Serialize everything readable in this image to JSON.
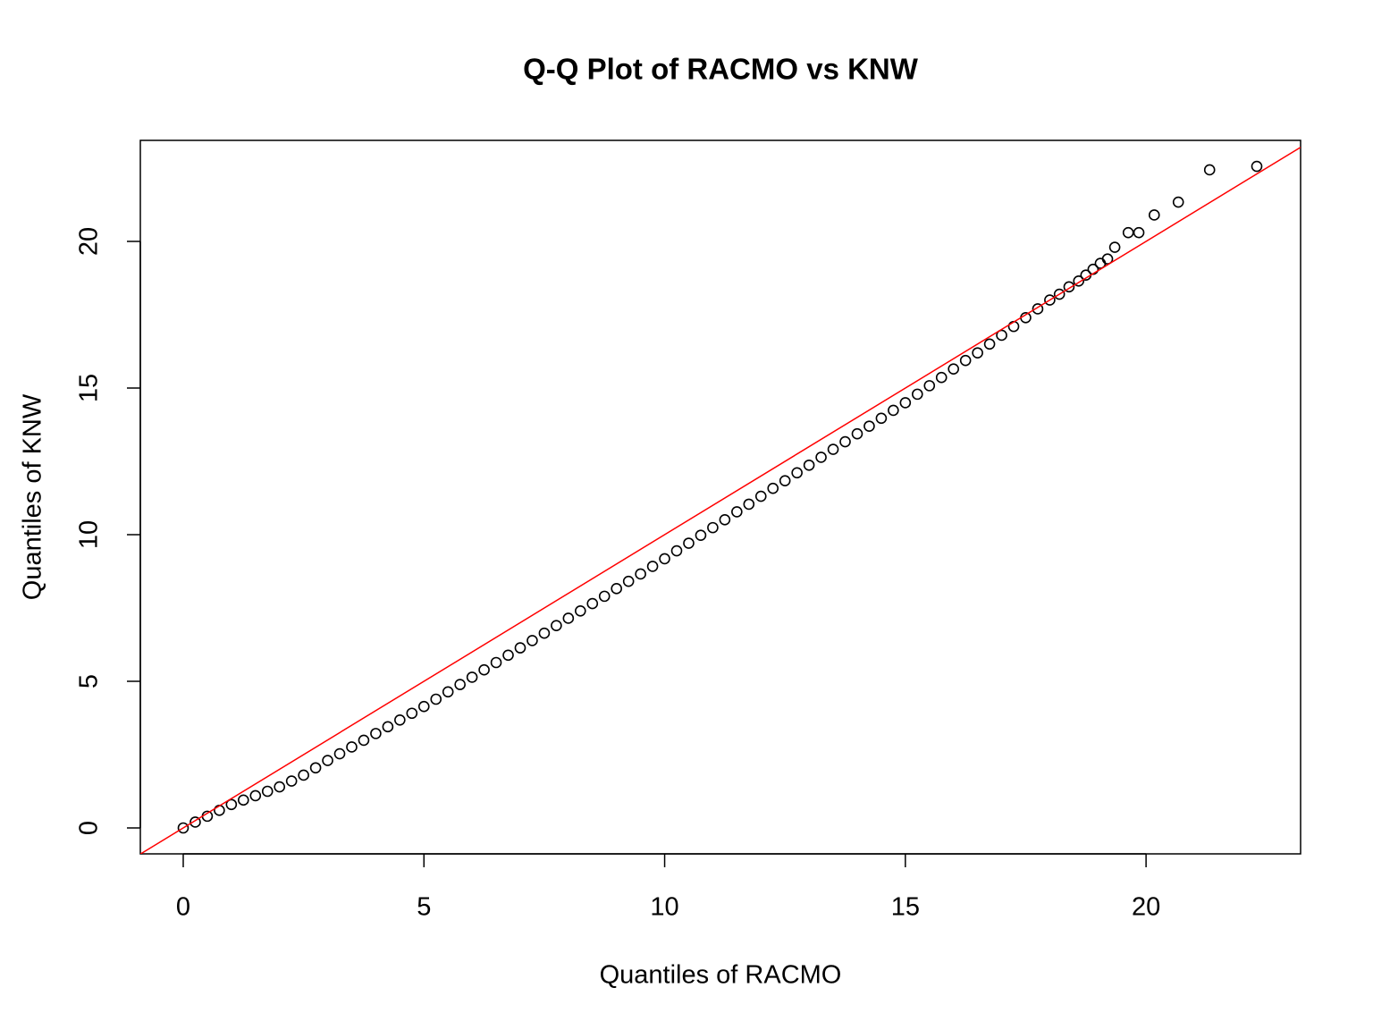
{
  "chart_data": {
    "type": "scatter",
    "title": "Q-Q Plot of RACMO vs KNW",
    "x_label": "Quantiles of RACMO",
    "y_label": "Quantiles of KNW",
    "xlim": [
      -0.891,
      23.21
    ],
    "ylim": [
      -0.884,
      23.445
    ],
    "xticks": [
      0,
      5,
      10,
      15,
      20
    ],
    "yticks": [
      0,
      5,
      10,
      15,
      20
    ],
    "grid": false,
    "color": "#000000",
    "reference_line": {
      "slope": 1,
      "intercept": 0,
      "color": "#ff0000"
    },
    "x": [
      0,
      0.25,
      0.5,
      0.75,
      1,
      1.25,
      1.5,
      1.75,
      2,
      2.25,
      2.5,
      2.75,
      3,
      3.25,
      3.5,
      3.75,
      4,
      4.25,
      4.5,
      4.75,
      5,
      5.25,
      5.5,
      5.75,
      6,
      6.25,
      6.5,
      6.75,
      7,
      7.25,
      7.5,
      7.75,
      8,
      8.25,
      8.5,
      8.75,
      9,
      9.25,
      9.5,
      9.75,
      10,
      10.25,
      10.5,
      10.75,
      11,
      11.25,
      11.5,
      11.75,
      12,
      12.25,
      12.5,
      12.75,
      13,
      13.25,
      13.5,
      13.75,
      14,
      14.25,
      14.5,
      14.75,
      15,
      15.25,
      15.5,
      15.75,
      16,
      16.25,
      16.5,
      16.75,
      17,
      17.25,
      17.5,
      17.75,
      18,
      18.2,
      18.4,
      18.6,
      18.75,
      18.9,
      19.05,
      19.2,
      19.35,
      19.63,
      19.85,
      20.17,
      20.67,
      21.32,
      22.3
    ],
    "values": [
      0,
      0.2,
      0.4,
      0.6,
      0.8,
      0.95,
      1.1,
      1.25,
      1.4,
      1.6,
      1.8,
      2.05,
      2.3,
      2.53,
      2.76,
      2.99,
      3.22,
      3.45,
      3.68,
      3.91,
      4.14,
      4.39,
      4.64,
      4.89,
      5.14,
      5.39,
      5.64,
      5.89,
      6.14,
      6.39,
      6.64,
      6.9,
      7.15,
      7.4,
      7.65,
      7.9,
      8.16,
      8.41,
      8.66,
      8.92,
      9.18,
      9.45,
      9.71,
      9.98,
      10.24,
      10.51,
      10.78,
      11.04,
      11.31,
      11.58,
      11.84,
      12.11,
      12.37,
      12.64,
      12.91,
      13.17,
      13.44,
      13.7,
      13.97,
      14.24,
      14.5,
      14.79,
      15.08,
      15.36,
      15.65,
      15.94,
      16.2,
      16.5,
      16.8,
      17.1,
      17.4,
      17.7,
      18.0,
      18.2,
      18.45,
      18.65,
      18.85,
      19.05,
      19.25,
      19.4,
      19.8,
      20.3,
      20.3,
      20.9,
      21.34,
      22.44,
      22.56
    ]
  }
}
